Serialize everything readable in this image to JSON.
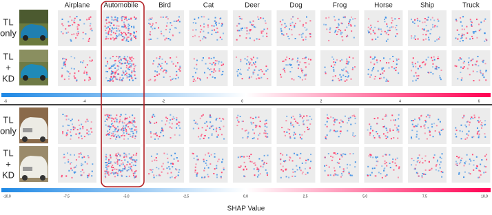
{
  "columns": [
    "Airplane",
    "Automobile",
    "Bird",
    "Cat",
    "Deer",
    "Dog",
    "Frog",
    "Horse",
    "Ship",
    "Truck"
  ],
  "rows": [
    {
      "label_lines": [
        "TL",
        "only"
      ]
    },
    {
      "label_lines": [
        "TL",
        "+",
        "KD"
      ]
    },
    {
      "label_lines": [
        "TL",
        "only"
      ]
    },
    {
      "label_lines": [
        "TL",
        "+",
        "KD"
      ]
    }
  ],
  "colorbars": [
    {
      "ticks": [
        "-6",
        "-4",
        "-2",
        "0",
        "2",
        "4",
        "6"
      ]
    },
    {
      "ticks": [
        "-10.0",
        "-7.5",
        "-5.0",
        "-2.5",
        "0.0",
        "2.5",
        "5.0",
        "7.5",
        "10.0"
      ]
    }
  ],
  "colorbar_label": "SHAP Value"
}
